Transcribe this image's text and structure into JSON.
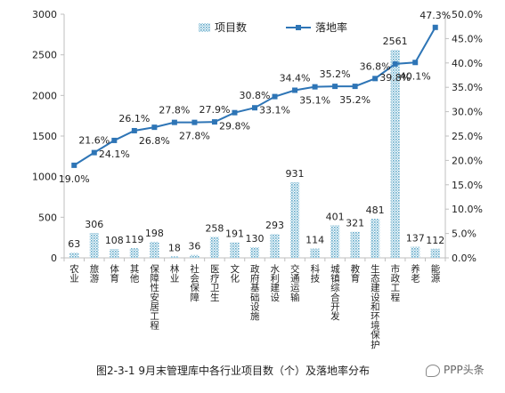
{
  "chart_data": {
    "type": "bar-line-combo",
    "categories": [
      "农业",
      "旅游",
      "体育",
      "其他",
      "保障性安居工程",
      "林业",
      "社会保障",
      "医疗卫生",
      "文化",
      "政府基础设施",
      "水利建设",
      "交通运输",
      "科技",
      "城镇综合开发",
      "教育",
      "生态建设和环境保护",
      "市政工程",
      "养老",
      "能源"
    ],
    "series": [
      {
        "name": "项目数",
        "type": "bar",
        "axis": "left",
        "values": [
          63,
          306,
          108,
          119,
          198,
          18,
          36,
          258,
          191,
          130,
          293,
          931,
          114,
          401,
          321,
          481,
          2561,
          137,
          112
        ]
      },
      {
        "name": "落地率",
        "type": "line",
        "axis": "right",
        "values": [
          19.0,
          21.6,
          24.1,
          26.1,
          26.8,
          27.8,
          27.8,
          27.9,
          29.8,
          30.8,
          33.1,
          34.4,
          35.1,
          35.2,
          35.2,
          36.8,
          39.8,
          40.1,
          47.3
        ]
      }
    ],
    "bar_labels": [
      "63",
      "306",
      "108",
      "119",
      "198",
      "18",
      "36",
      "258",
      "191",
      "130",
      "293",
      "931",
      "114",
      "401",
      "321",
      "481",
      "2561",
      "137",
      "112"
    ],
    "line_labels": [
      "19.0%",
      "21.6%",
      "24.1%",
      "26.1%",
      "26.8%",
      "27.8%",
      "27.8%",
      "27.9%",
      "29.8%",
      "30.8%",
      "33.1%",
      "34.4%",
      "35.1%",
      "35.2%",
      "35.2%",
      "36.8%",
      "39.8%",
      "40.1%",
      "47.3%"
    ],
    "ylim_left": [
      0,
      3000
    ],
    "ylim_right": [
      0,
      50
    ],
    "left_ticks": [
      "0",
      "500",
      "1000",
      "1500",
      "2000",
      "2500",
      "3000"
    ],
    "right_ticks": [
      "0.0%",
      "5.0%",
      "10.0%",
      "15.0%",
      "20.0%",
      "25.0%",
      "30.0%",
      "35.0%",
      "40.0%",
      "45.0%",
      "50.0%"
    ],
    "legend": {
      "bar": "项目数",
      "line": "落地率",
      "position": "top-left"
    },
    "grid": false,
    "colors": {
      "bar": "#5fa8c8",
      "line": "#2e75b6",
      "axis": "#bfbfbf",
      "text": "#222222"
    }
  },
  "caption": "图2-3-1  9月末管理库中各行业项目数（个）及落地率分布",
  "watermark": "PPP头条"
}
